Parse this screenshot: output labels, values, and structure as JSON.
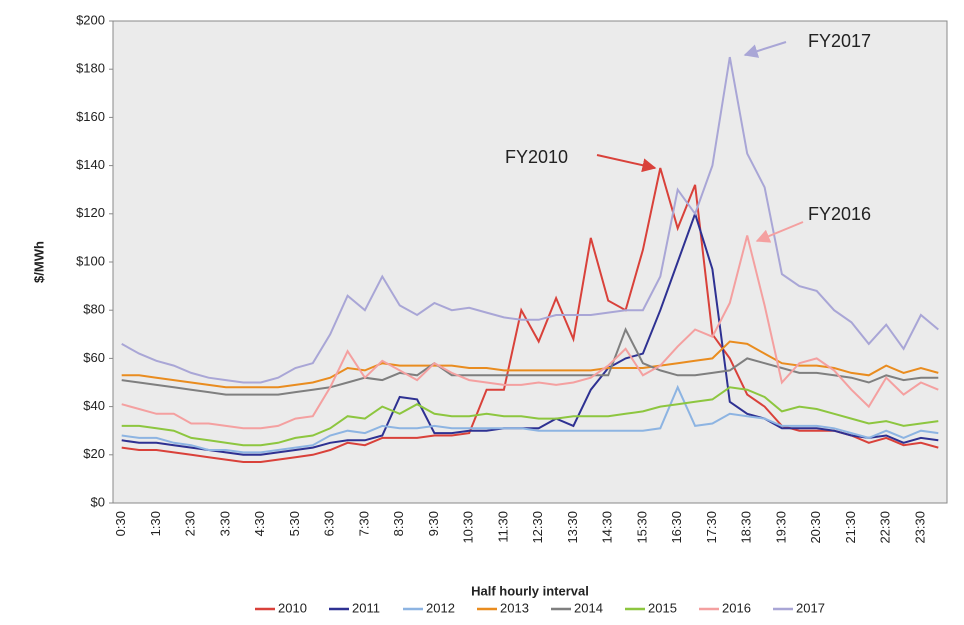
{
  "chart_data": {
    "type": "line",
    "x_label": "Half hourly interval",
    "y_label": "$/MWh",
    "categories": [
      "0:30",
      null,
      "1:30",
      null,
      "2:30",
      null,
      "3:30",
      null,
      "4:30",
      null,
      "5:30",
      null,
      "6:30",
      null,
      "7:30",
      null,
      "8:30",
      null,
      "9:30",
      null,
      "10:30",
      null,
      "11:30",
      null,
      "12:30",
      null,
      "13:30",
      null,
      "14:30",
      null,
      "15:30",
      null,
      "16:30",
      null,
      "17:30",
      null,
      "18:30",
      null,
      "19:30",
      null,
      "20:30",
      null,
      "21:30",
      null,
      "22:30",
      null,
      "23:30",
      null
    ],
    "series": [
      {
        "name": "2010",
        "color": "#d9413a",
        "values": [
          23,
          22,
          22,
          21,
          20,
          19,
          18,
          17,
          17,
          18,
          19,
          20,
          22,
          25,
          24,
          27,
          27,
          27,
          28,
          28,
          29,
          47,
          47,
          80,
          67,
          85,
          68,
          110,
          84,
          80,
          105,
          139,
          114,
          132,
          70,
          60,
          45,
          40,
          32,
          30,
          30,
          30,
          28,
          25,
          27,
          24,
          25,
          23
        ]
      },
      {
        "name": "2011",
        "color": "#2e3192",
        "values": [
          26,
          25,
          25,
          24,
          23,
          22,
          21,
          20,
          20,
          21,
          22,
          23,
          25,
          26,
          26,
          28,
          44,
          43,
          29,
          29,
          30,
          30,
          31,
          31,
          31,
          35,
          32,
          47,
          56,
          60,
          62,
          80,
          100,
          120,
          97,
          42,
          37,
          35,
          31,
          31,
          31,
          30,
          28,
          27,
          28,
          25,
          27,
          26
        ]
      },
      {
        "name": "2012",
        "color": "#8db4e2",
        "values": [
          28,
          27,
          27,
          25,
          24,
          22,
          22,
          21,
          21,
          22,
          23,
          24,
          28,
          30,
          29,
          32,
          31,
          31,
          32,
          31,
          31,
          31,
          31,
          31,
          30,
          30,
          30,
          30,
          30,
          30,
          30,
          31,
          48,
          32,
          33,
          37,
          36,
          35,
          32,
          32,
          32,
          31,
          29,
          27,
          30,
          27,
          30,
          29
        ]
      },
      {
        "name": "2013",
        "color": "#e98c1f",
        "values": [
          53,
          53,
          52,
          51,
          50,
          49,
          48,
          48,
          48,
          48,
          49,
          50,
          52,
          56,
          55,
          58,
          57,
          57,
          57,
          57,
          56,
          56,
          55,
          55,
          55,
          55,
          55,
          55,
          56,
          56,
          56,
          57,
          58,
          59,
          60,
          67,
          66,
          62,
          58,
          57,
          57,
          56,
          54,
          53,
          57,
          54,
          56,
          54
        ]
      },
      {
        "name": "2014",
        "color": "#7f7f7f",
        "values": [
          51,
          50,
          49,
          48,
          47,
          46,
          45,
          45,
          45,
          45,
          46,
          47,
          48,
          50,
          52,
          51,
          54,
          53,
          58,
          53,
          53,
          53,
          53,
          53,
          53,
          53,
          53,
          53,
          53,
          72,
          58,
          55,
          53,
          53,
          54,
          55,
          60,
          58,
          56,
          54,
          54,
          53,
          52,
          50,
          53,
          51,
          52,
          52
        ]
      },
      {
        "name": "2015",
        "color": "#8dc63f",
        "values": [
          32,
          32,
          31,
          30,
          27,
          26,
          25,
          24,
          24,
          25,
          27,
          28,
          31,
          36,
          35,
          40,
          37,
          41,
          37,
          36,
          36,
          37,
          36,
          36,
          35,
          35,
          36,
          36,
          36,
          37,
          38,
          40,
          41,
          42,
          43,
          48,
          47,
          44,
          38,
          40,
          39,
          37,
          35,
          33,
          34,
          32,
          33,
          34
        ]
      },
      {
        "name": "2016",
        "color": "#f4a0a0",
        "values": [
          41,
          39,
          37,
          37,
          33,
          33,
          32,
          31,
          31,
          32,
          35,
          36,
          48,
          63,
          52,
          59,
          55,
          51,
          58,
          54,
          51,
          50,
          49,
          49,
          50,
          49,
          50,
          52,
          57,
          64,
          53,
          57,
          65,
          72,
          69,
          83,
          111,
          82,
          50,
          58,
          60,
          55,
          47,
          40,
          52,
          45,
          50,
          47
        ]
      },
      {
        "name": "2017",
        "color": "#a9a6d6",
        "values": [
          66,
          62,
          59,
          57,
          54,
          52,
          51,
          50,
          50,
          52,
          56,
          58,
          70,
          86,
          80,
          94,
          82,
          78,
          83,
          80,
          81,
          79,
          77,
          76,
          76,
          78,
          78,
          78,
          79,
          80,
          80,
          94,
          130,
          120,
          140,
          185,
          145,
          131,
          95,
          90,
          88,
          80,
          75,
          66,
          74,
          64,
          78,
          72
        ]
      }
    ],
    "ylim": [
      0,
      200
    ],
    "yticks": [
      {
        "value": 0,
        "label": "$0"
      },
      {
        "value": 20,
        "label": "$20"
      },
      {
        "value": 40,
        "label": "$40"
      },
      {
        "value": 60,
        "label": "$60"
      },
      {
        "value": 80,
        "label": "$80"
      },
      {
        "value": 100,
        "label": "$100"
      },
      {
        "value": 120,
        "label": "$120"
      },
      {
        "value": 140,
        "label": "$140"
      },
      {
        "value": 160,
        "label": "$160"
      },
      {
        "value": 180,
        "label": "$180"
      },
      {
        "value": 200,
        "label": "$200"
      }
    ],
    "annotations": [
      "FY2017",
      "FY2010",
      "FY2016"
    ],
    "grid": false,
    "legend": "bottom",
    "background": "#ebebeb"
  }
}
